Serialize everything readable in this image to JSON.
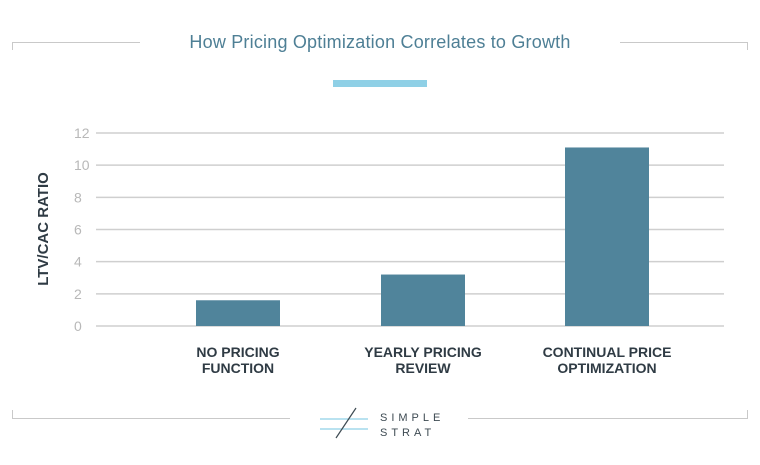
{
  "logo": {
    "line1": "SIMPLE",
    "line2": "STRAT"
  },
  "colors": {
    "bar": "#50849b",
    "accent": "#8fd0e6",
    "title": "#4e7f95",
    "grid": "#cfcfcf",
    "tick": "#b8b8b8",
    "label": "#2f3b44"
  },
  "chart_data": {
    "type": "bar",
    "title": "How Pricing Optimization Correlates to Growth",
    "xlabel": "",
    "ylabel": "LTV/CAC RATIO",
    "categories": [
      [
        "NO PRICING",
        "FUNCTION"
      ],
      [
        "YEARLY PRICING",
        "REVIEW"
      ],
      [
        "CONTINUAL PRICE",
        "OPTIMIZATION"
      ]
    ],
    "values": [
      1.6,
      3.2,
      11.1
    ],
    "ylim": [
      0,
      12
    ],
    "yticks": [
      0,
      2,
      4,
      6,
      8,
      10,
      12
    ],
    "grid": true,
    "legend": "none"
  }
}
